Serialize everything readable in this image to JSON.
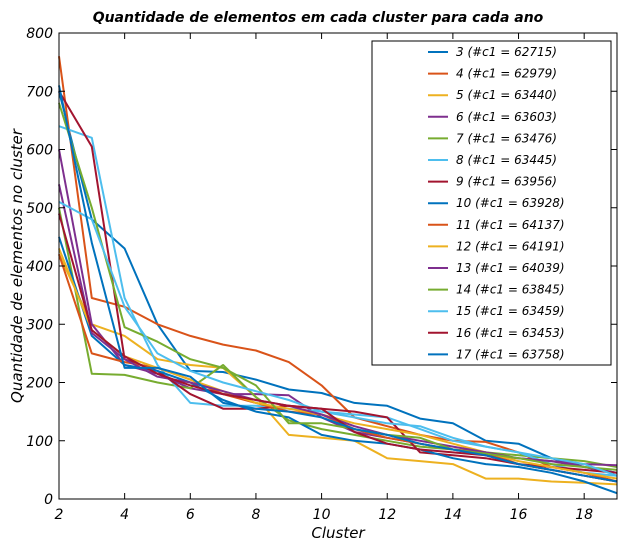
{
  "chart_data": {
    "type": "line",
    "title": "Quantidade de elementos em cada cluster para cada ano",
    "xlabel": "Cluster",
    "ylabel": "Quantidade de elementos no cluster",
    "xlim": [
      2,
      19
    ],
    "ylim": [
      0,
      800
    ],
    "xticks": [
      2,
      4,
      6,
      8,
      10,
      12,
      14,
      16,
      18
    ],
    "yticks": [
      0,
      100,
      200,
      300,
      400,
      500,
      600,
      700,
      800
    ],
    "legend_position": "top-right",
    "grid": false,
    "series": [
      {
        "name": "3 (#c1 = 62715)",
        "color": "#0072bd",
        "x": [
          2,
          3,
          4,
          5,
          6,
          7,
          8,
          9,
          10,
          11,
          12,
          13,
          14,
          15,
          16,
          17,
          18,
          19
        ],
        "y": [
          700,
          480,
          430,
          300,
          220,
          218,
          205,
          188,
          182,
          165,
          160,
          138,
          130,
          100,
          95,
          70,
          55,
          45
        ]
      },
      {
        "name": "4 (#c1 = 62979)",
        "color": "#d95319",
        "x": [
          2,
          3,
          4,
          5,
          6,
          7,
          8,
          9,
          10,
          11,
          12,
          13,
          14,
          15,
          16,
          17,
          18,
          19
        ],
        "y": [
          760,
          345,
          330,
          300,
          280,
          265,
          255,
          235,
          195,
          140,
          125,
          110,
          100,
          98,
          80,
          55,
          45,
          30
        ]
      },
      {
        "name": "5 (#c1 = 63440)",
        "color": "#edb120",
        "x": [
          2,
          3,
          4,
          5,
          6,
          7,
          8,
          9,
          10,
          11,
          12,
          13,
          14,
          15,
          16,
          17,
          18,
          19
        ],
        "y": [
          420,
          300,
          280,
          240,
          230,
          225,
          175,
          110,
          105,
          100,
          70,
          65,
          60,
          35,
          35,
          30,
          28,
          25
        ]
      },
      {
        "name": "6 (#c1 = 63603)",
        "color": "#7e2f8e",
        "x": [
          2,
          3,
          4,
          5,
          6,
          7,
          8,
          9,
          10,
          11,
          12,
          13,
          14,
          15,
          16,
          17,
          18,
          19
        ],
        "y": [
          600,
          300,
          230,
          215,
          190,
          180,
          180,
          178,
          140,
          115,
          105,
          95,
          85,
          75,
          70,
          65,
          55,
          45
        ]
      },
      {
        "name": "7 (#c1 = 63476)",
        "color": "#77ac30",
        "x": [
          2,
          3,
          4,
          5,
          6,
          7,
          8,
          9,
          10,
          11,
          12,
          13,
          14,
          15,
          16,
          17,
          18,
          19
        ],
        "y": [
          500,
          215,
          213,
          200,
          190,
          230,
          175,
          135,
          120,
          110,
          100,
          90,
          85,
          80,
          75,
          70,
          65,
          55
        ]
      },
      {
        "name": "8 (#c1 = 63445)",
        "color": "#4dbeee",
        "x": [
          2,
          3,
          4,
          5,
          6,
          7,
          8,
          9,
          10,
          11,
          12,
          13,
          14,
          15,
          16,
          17,
          18,
          19
        ],
        "y": [
          640,
          620,
          345,
          230,
          165,
          160,
          160,
          155,
          150,
          145,
          140,
          120,
          100,
          90,
          80,
          60,
          45,
          40
        ]
      },
      {
        "name": "9 (#c1 = 63956)",
        "color": "#a2142f",
        "x": [
          2,
          3,
          4,
          5,
          6,
          7,
          8,
          9,
          10,
          11,
          12,
          13,
          14,
          15,
          16,
          17,
          18,
          19
        ],
        "y": [
          700,
          605,
          240,
          220,
          180,
          155,
          155,
          160,
          155,
          150,
          140,
          80,
          75,
          70,
          60,
          55,
          50,
          45
        ]
      },
      {
        "name": "10 (#c1 = 63928)",
        "color": "#0072bd",
        "x": [
          2,
          3,
          4,
          5,
          6,
          7,
          8,
          9,
          10,
          11,
          12,
          13,
          14,
          15,
          16,
          17,
          18,
          19
        ],
        "y": [
          450,
          280,
          230,
          220,
          200,
          170,
          150,
          140,
          110,
          100,
          95,
          85,
          70,
          60,
          55,
          45,
          30,
          10
        ]
      },
      {
        "name": "11 (#c1 = 64137)",
        "color": "#d95319",
        "x": [
          2,
          3,
          4,
          5,
          6,
          7,
          8,
          9,
          10,
          11,
          12,
          13,
          14,
          15,
          16,
          17,
          18,
          19
        ],
        "y": [
          420,
          250,
          235,
          225,
          205,
          180,
          165,
          150,
          145,
          120,
          105,
          95,
          85,
          80,
          60,
          50,
          40,
          30
        ]
      },
      {
        "name": "12 (#c1 = 64191)",
        "color": "#edb120",
        "x": [
          2,
          3,
          4,
          5,
          6,
          7,
          8,
          9,
          10,
          11,
          12,
          13,
          14,
          15,
          16,
          17,
          18,
          19
        ],
        "y": [
          430,
          290,
          245,
          225,
          205,
          185,
          165,
          155,
          145,
          130,
          120,
          110,
          95,
          80,
          65,
          55,
          45,
          35
        ]
      },
      {
        "name": "13 (#c1 = 64039)",
        "color": "#7e2f8e",
        "x": [
          2,
          3,
          4,
          5,
          6,
          7,
          8,
          9,
          10,
          11,
          12,
          13,
          14,
          15,
          16,
          17,
          18,
          19
        ],
        "y": [
          540,
          285,
          240,
          210,
          200,
          185,
          170,
          160,
          145,
          125,
          110,
          100,
          90,
          80,
          70,
          65,
          60,
          58
        ]
      },
      {
        "name": "14 (#c1 = 63845)",
        "color": "#77ac30",
        "x": [
          2,
          3,
          4,
          5,
          6,
          7,
          8,
          9,
          10,
          11,
          12,
          13,
          14,
          15,
          16,
          17,
          18,
          19
        ],
        "y": [
          680,
          500,
          295,
          270,
          240,
          225,
          195,
          130,
          130,
          120,
          110,
          105,
          85,
          78,
          70,
          60,
          55,
          50
        ]
      },
      {
        "name": "15 (#c1 = 63459)",
        "color": "#4dbeee",
        "x": [
          2,
          3,
          4,
          5,
          6,
          7,
          8,
          9,
          10,
          11,
          12,
          13,
          14,
          15,
          16,
          17,
          18,
          19
        ],
        "y": [
          510,
          480,
          330,
          250,
          220,
          200,
          185,
          170,
          150,
          140,
          130,
          125,
          105,
          90,
          80,
          70,
          60,
          40
        ]
      },
      {
        "name": "16 (#c1 = 63453)",
        "color": "#a2142f",
        "x": [
          2,
          3,
          4,
          5,
          6,
          7,
          8,
          9,
          10,
          11,
          12,
          13,
          14,
          15,
          16,
          17,
          18,
          19
        ],
        "y": [
          490,
          290,
          245,
          215,
          195,
          180,
          170,
          160,
          155,
          115,
          95,
          85,
          80,
          75,
          60,
          50,
          40,
          30
        ]
      },
      {
        "name": "17 (#c1 = 63758)",
        "color": "#0072bd",
        "x": [
          2,
          3,
          4,
          5,
          6,
          7,
          8,
          9,
          10,
          11,
          12,
          13,
          14,
          15,
          16,
          17,
          18,
          19
        ],
        "y": [
          710,
          440,
          225,
          225,
          210,
          165,
          155,
          150,
          140,
          120,
          110,
          95,
          85,
          75,
          60,
          50,
          40,
          30
        ]
      }
    ]
  }
}
